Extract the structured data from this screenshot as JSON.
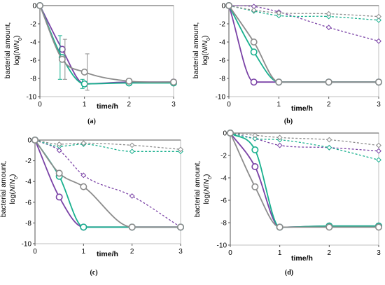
{
  "colors": {
    "purple": "#7a42a6",
    "green": "#19b08e",
    "gray": "#8c8c8c",
    "frame": "#bfbfbf"
  },
  "chart_data": [
    {
      "type": "line",
      "panel_label": "(a)",
      "ylabel_line1": "bacterial amount,",
      "ylabel_line2_parts": [
        "log(",
        "N",
        "/",
        "N",
        "0",
        ")"
      ],
      "xlabel": "time/h",
      "xlim": [
        0,
        3
      ],
      "ylim": [
        -10,
        0
      ],
      "xticks": [
        "0",
        "1",
        "2",
        "3"
      ],
      "yticks": [
        "0",
        "-2",
        "-4",
        "-6",
        "-8",
        "-10"
      ],
      "series": [
        {
          "color": "purple",
          "style": "solid",
          "marker": "circle",
          "x": [
            0,
            0.5,
            1,
            2,
            3
          ],
          "y": [
            0,
            -4.8,
            -8.6,
            -8.4,
            -8.4
          ]
        },
        {
          "color": "green",
          "style": "solid",
          "marker": "circle",
          "x": [
            0,
            0.5,
            1,
            2,
            3
          ],
          "y": [
            0,
            -5.7,
            -8.6,
            -8.5,
            -8.5
          ],
          "yerr": [
            0,
            2.4,
            0.5,
            0,
            0
          ]
        },
        {
          "color": "gray",
          "style": "solid",
          "marker": "circle",
          "x": [
            0,
            0.5,
            1,
            2,
            3
          ],
          "y": [
            0,
            -5.9,
            -7.3,
            -8.3,
            -8.4
          ],
          "yerr": [
            0,
            2.2,
            2.0,
            0,
            0
          ]
        }
      ]
    },
    {
      "type": "line",
      "panel_label": "(b)",
      "ylabel_line1": "bacterial amount,",
      "ylabel_line2_parts": [
        "log(",
        "N",
        "/",
        "N",
        "0",
        ")"
      ],
      "xlabel": "time/h",
      "xlim": [
        0,
        3
      ],
      "ylim": [
        -10,
        0
      ],
      "xticks": [
        "0",
        "1",
        "2",
        "3"
      ],
      "yticks": [
        "0",
        "-2",
        "-4",
        "-6",
        "-8",
        "-10"
      ],
      "series": [
        {
          "color": "purple",
          "style": "solid",
          "marker": "circle",
          "x": [
            0,
            0.5,
            1,
            2,
            3
          ],
          "y": [
            0,
            -8.4,
            -8.4,
            -8.4,
            -8.4
          ]
        },
        {
          "color": "green",
          "style": "solid",
          "marker": "circle",
          "x": [
            0,
            0.5,
            1,
            2,
            3
          ],
          "y": [
            0,
            -5.1,
            -8.4,
            -8.4,
            -8.4
          ]
        },
        {
          "color": "gray",
          "style": "solid",
          "marker": "circle",
          "x": [
            0,
            0.5,
            1,
            2,
            3
          ],
          "y": [
            0,
            -4.0,
            -8.4,
            -8.4,
            -8.4
          ]
        },
        {
          "color": "purple",
          "style": "dashed",
          "marker": "diamond",
          "x": [
            0,
            0.5,
            1,
            2,
            3
          ],
          "y": [
            0,
            -0.1,
            -0.7,
            -2.4,
            -3.9
          ]
        },
        {
          "color": "green",
          "style": "dashed",
          "marker": "diamond",
          "x": [
            0,
            0.5,
            1,
            2,
            3
          ],
          "y": [
            0,
            -0.6,
            -1.1,
            -1.2,
            -1.6
          ]
        },
        {
          "color": "gray",
          "style": "dashed",
          "marker": "diamond",
          "x": [
            0,
            0.5,
            1,
            2,
            3
          ],
          "y": [
            0,
            -0.5,
            -0.8,
            -0.9,
            -1.2
          ]
        }
      ]
    },
    {
      "type": "line",
      "panel_label": "(c)",
      "ylabel_line1": "bacterial amount,",
      "ylabel_line2_parts": [
        "log(",
        "N",
        "/",
        "N",
        "0",
        ")"
      ],
      "xlabel": "time/h",
      "xlim": [
        0,
        3
      ],
      "ylim": [
        -10,
        0
      ],
      "xticks": [
        "0",
        "1",
        "2",
        "3"
      ],
      "yticks": [
        "0",
        "-2",
        "-4",
        "-6",
        "-8",
        "-10"
      ],
      "series": [
        {
          "color": "purple",
          "style": "solid",
          "marker": "circle",
          "x": [
            0,
            0.5,
            1,
            2,
            3
          ],
          "y": [
            0,
            -5.5,
            -8.4,
            -8.4,
            -8.4
          ]
        },
        {
          "color": "green",
          "style": "solid",
          "marker": "circle",
          "x": [
            0,
            0.5,
            1,
            2,
            3
          ],
          "y": [
            0,
            -3.5,
            -8.4,
            -8.4,
            -8.4
          ]
        },
        {
          "color": "gray",
          "style": "solid",
          "marker": "circle",
          "x": [
            0,
            0.5,
            1,
            2,
            3
          ],
          "y": [
            0,
            -3.2,
            -4.5,
            -8.4,
            -8.4
          ]
        },
        {
          "color": "purple",
          "style": "dashed",
          "marker": "diamond",
          "x": [
            0,
            0.5,
            1,
            2,
            3
          ],
          "y": [
            0,
            -1.0,
            -3.4,
            -5.4,
            -8.4
          ]
        },
        {
          "color": "green",
          "style": "dashed",
          "marker": "diamond",
          "x": [
            0,
            0.5,
            1,
            2,
            3
          ],
          "y": [
            0,
            -0.6,
            -0.4,
            -1.1,
            -1.1
          ]
        },
        {
          "color": "gray",
          "style": "dashed",
          "marker": "diamond",
          "x": [
            0,
            0.5,
            1,
            2,
            3
          ],
          "y": [
            0,
            -0.4,
            -0.3,
            -0.5,
            -0.9
          ]
        }
      ]
    },
    {
      "type": "line",
      "panel_label": "(d)",
      "ylabel_line1": "bacterial amount,",
      "ylabel_line2_parts": [
        "log(",
        "N",
        "/",
        "N",
        "0",
        ")"
      ],
      "xlabel": "time/h",
      "xlim": [
        0,
        3
      ],
      "ylim": [
        -10,
        0
      ],
      "xticks": [
        "0",
        "1",
        "2",
        "3"
      ],
      "yticks": [
        "0",
        "-2",
        "-4",
        "-6",
        "-8",
        "-10"
      ],
      "series": [
        {
          "color": "purple",
          "style": "solid",
          "marker": "circle",
          "x": [
            0,
            0.5,
            1,
            2,
            3
          ],
          "y": [
            0,
            -3.0,
            -8.4,
            -8.3,
            -8.3
          ]
        },
        {
          "color": "green",
          "style": "solid",
          "marker": "circle",
          "x": [
            0,
            0.5,
            1,
            2,
            3
          ],
          "y": [
            0,
            -1.5,
            -8.4,
            -8.3,
            -8.3
          ]
        },
        {
          "color": "gray",
          "style": "solid",
          "marker": "circle",
          "x": [
            0,
            0.5,
            1,
            2,
            3
          ],
          "y": [
            0,
            -4.8,
            -8.4,
            -8.4,
            -8.4
          ]
        },
        {
          "color": "purple",
          "style": "dashed",
          "marker": "diamond",
          "x": [
            0,
            0.5,
            1,
            2,
            3
          ],
          "y": [
            0,
            -0.5,
            -1.1,
            -1.3,
            -1.6
          ]
        },
        {
          "color": "green",
          "style": "dashed",
          "marker": "diamond",
          "x": [
            0,
            0.5,
            1,
            2,
            3
          ],
          "y": [
            0,
            -0.5,
            -0.6,
            -1.3,
            -2.4
          ]
        },
        {
          "color": "gray",
          "style": "dashed",
          "marker": "diamond",
          "x": [
            0,
            0.5,
            1,
            2,
            3
          ],
          "y": [
            0,
            -0.2,
            -0.4,
            -0.6,
            -1.1
          ]
        }
      ]
    }
  ]
}
